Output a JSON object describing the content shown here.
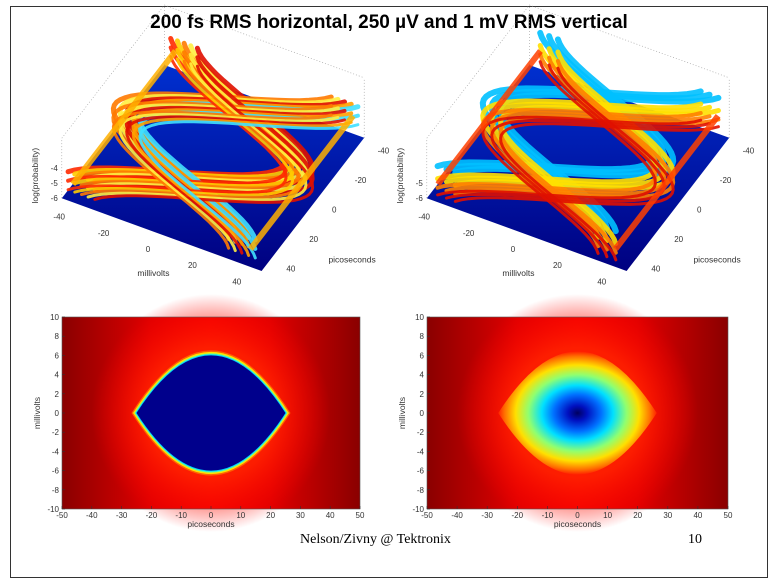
{
  "slide": {
    "title": "200 fs RMS horizontal, 250 µV and 1 mV RMS vertical",
    "footer": "Nelson/Zivny @ Tektronix",
    "page_number": "10"
  },
  "chart_data": [
    {
      "type": "surface",
      "panel": "top-left",
      "title": "",
      "xlabel": "millivolts",
      "ylabel": "picoseconds",
      "zlabel": "log(probability)",
      "x_ticks": [
        "-40",
        "-20",
        "0",
        "20",
        "40"
      ],
      "y_ticks": [
        "-40",
        "-20",
        "0",
        "20",
        "40"
      ],
      "z_ticks": [
        "-4",
        "-5",
        "-6"
      ],
      "zlim": [
        -6,
        -4
      ],
      "vertical_noise_rms": "250 µV"
    },
    {
      "type": "surface",
      "panel": "top-right",
      "title": "",
      "xlabel": "millivolts",
      "ylabel": "picoseconds",
      "zlabel": "log(probability)",
      "x_ticks": [
        "-40",
        "-20",
        "0",
        "20",
        "40"
      ],
      "y_ticks": [
        "-40",
        "-20",
        "0",
        "20",
        "40"
      ],
      "z_ticks": [
        "-5",
        "-6"
      ],
      "zlim": [
        -6,
        -4
      ],
      "vertical_noise_rms": "1 mV"
    },
    {
      "type": "heatmap",
      "panel": "bottom-left",
      "xlabel": "picoseconds",
      "ylabel": "millivolts",
      "xlim": [
        -50,
        50
      ],
      "ylim": [
        -10,
        10
      ],
      "x_ticks": [
        "-50",
        "-40",
        "-30",
        "-20",
        "-10",
        "0",
        "10",
        "20",
        "30",
        "40",
        "50"
      ],
      "y_ticks": [
        "10",
        "8",
        "6",
        "4",
        "2",
        "0",
        "-2",
        "-4",
        "-6",
        "-8",
        "-10"
      ],
      "eye_opening": {
        "ps": [
          -25,
          25
        ],
        "mV": [
          -6,
          6
        ]
      },
      "center": "deep blue (fully open)"
    },
    {
      "type": "heatmap",
      "panel": "bottom-right",
      "xlabel": "picoseconds",
      "ylabel": "millivolts",
      "xlim": [
        -50,
        50
      ],
      "ylim": [
        -10,
        10
      ],
      "x_ticks": [
        "-50",
        "-40",
        "-30",
        "-20",
        "-10",
        "0",
        "10",
        "20",
        "30",
        "40",
        "50"
      ],
      "y_ticks": [
        "10",
        "8",
        "6",
        "4",
        "2",
        "0",
        "-2",
        "-4",
        "-6",
        "-8",
        "-10"
      ],
      "eye_opening": {
        "ps": [
          -25,
          25
        ],
        "mV": [
          -6,
          6
        ]
      },
      "center": "small dark blue core, mostly cyan/yellow"
    }
  ],
  "colors": {
    "dark_red": "#7f0000",
    "red": "#ee0000",
    "orange": "#ff8800",
    "yellow": "#ffee00",
    "cyan": "#00ddff",
    "blue": "#0000aa",
    "dark_blue": "#00006a"
  }
}
